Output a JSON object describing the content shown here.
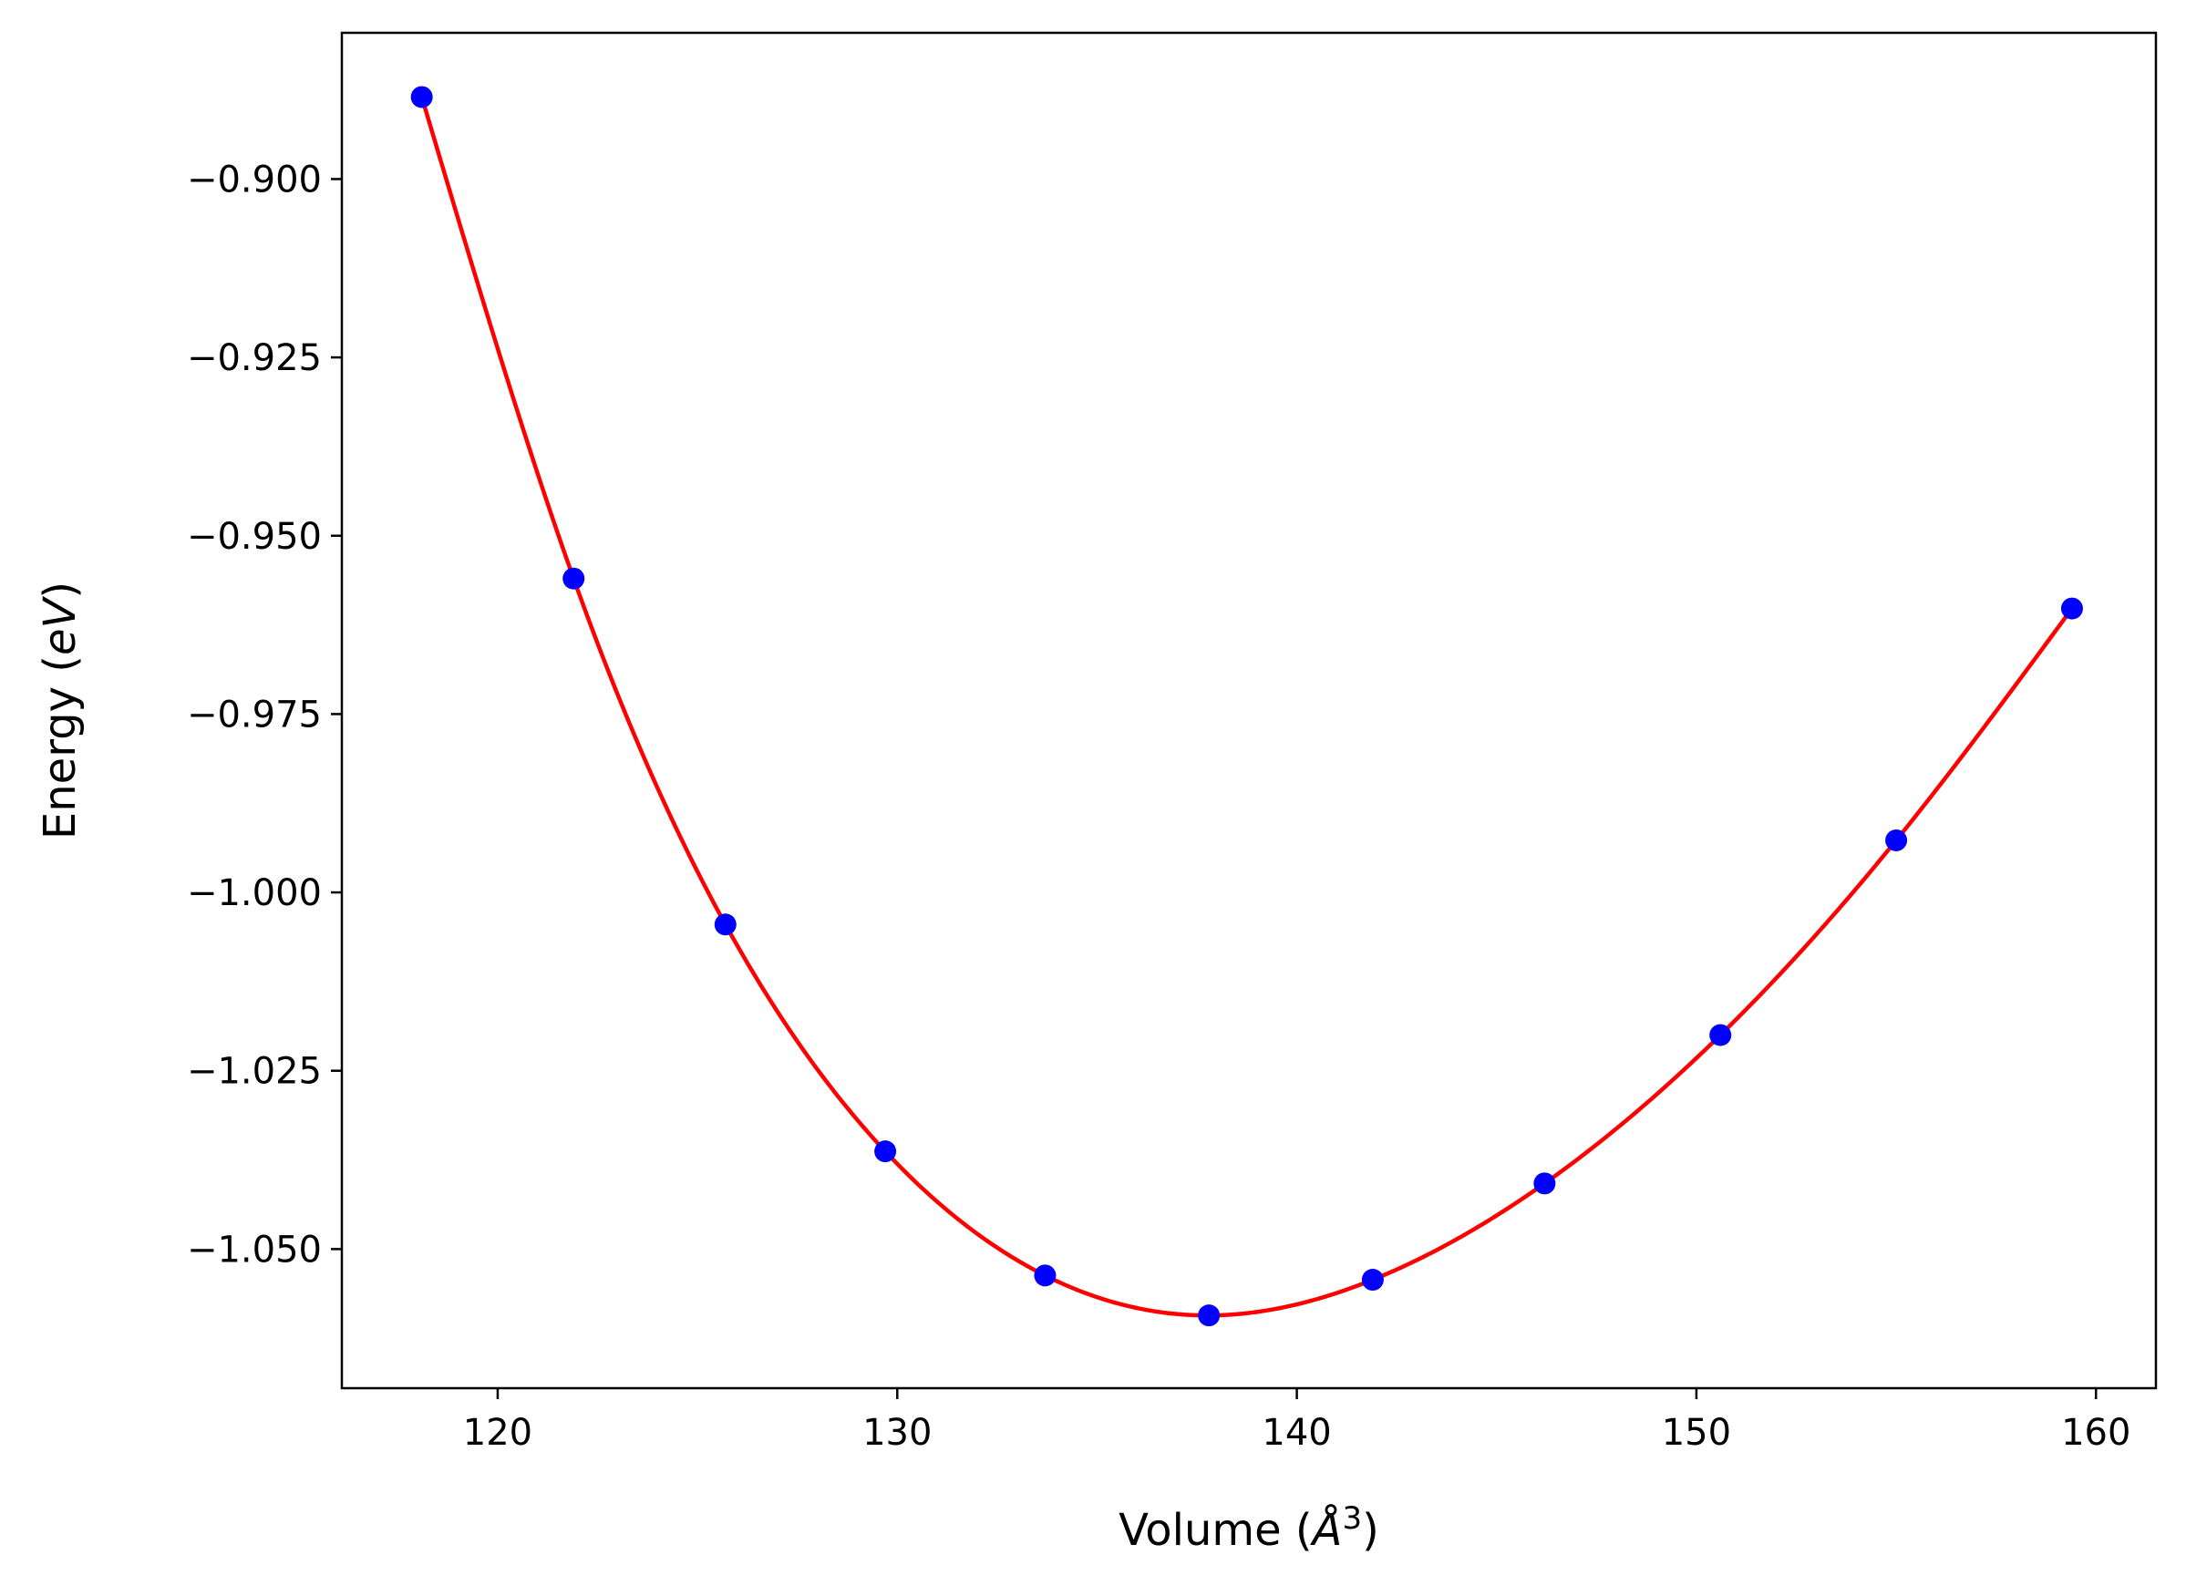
{
  "chart_data": {
    "type": "scatter",
    "title": "",
    "xlabel_parts": [
      "Volume (",
      "Å",
      "3",
      ")"
    ],
    "ylabel_parts": [
      "Energy (",
      "eV",
      ")"
    ],
    "xlim": [
      116.1,
      161.5
    ],
    "ylim": [
      -1.0695,
      -0.8795
    ],
    "xticks": [
      120,
      130,
      140,
      150,
      160
    ],
    "xtick_labels": [
      "120",
      "130",
      "140",
      "150",
      "160"
    ],
    "yticks": [
      -0.9,
      -0.925,
      -0.95,
      -0.975,
      -1.0,
      -1.025,
      -1.05
    ],
    "ytick_labels": [
      "−0.900",
      "−0.925",
      "−0.950",
      "−0.975",
      "−1.000",
      "−1.025",
      "−1.050"
    ],
    "grid": false,
    "series": [
      {
        "kind": "points",
        "color": "#0000ff",
        "x": [
          118.1,
          121.9,
          125.7,
          129.7,
          133.7,
          137.8,
          141.9,
          146.2,
          150.6,
          155.0,
          159.4
        ],
        "y": [
          -0.8885,
          -0.956,
          -1.0045,
          -1.0363,
          -1.0537,
          -1.0593,
          -1.0543,
          -1.0408,
          -1.02,
          -0.9927,
          -0.9602
        ]
      },
      {
        "kind": "fit-curve",
        "color": "#ff0000",
        "x": [
          118.1,
          121.9,
          125.7,
          129.7,
          133.7,
          137.8,
          141.9,
          146.2,
          150.6,
          155.0,
          159.4
        ],
        "y": [
          -0.8885,
          -0.956,
          -1.0045,
          -1.0363,
          -1.0537,
          -1.0593,
          -1.0543,
          -1.0408,
          -1.02,
          -0.9927,
          -0.9602
        ]
      }
    ]
  }
}
